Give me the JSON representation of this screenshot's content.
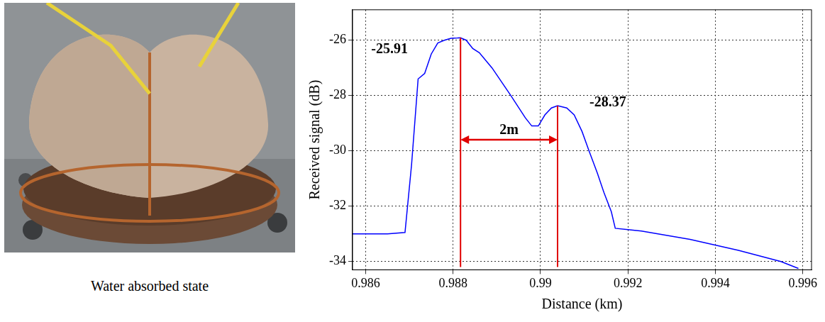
{
  "chart_data": {
    "type": "line",
    "x_label": "Distance (km)",
    "y_label": "Received signal (dB)",
    "xlim": [
      0.9857,
      0.9962
    ],
    "ylim": [
      -34.3,
      -24.9
    ],
    "xticks": [
      0.986,
      0.988,
      0.99,
      0.992,
      0.994,
      0.996
    ],
    "yticks": [
      -34,
      -32,
      -30,
      -28,
      -26
    ],
    "grid": true,
    "series": [
      {
        "color": "#0000ff",
        "x": [
          0.9857,
          0.9865,
          0.9869,
          0.98705,
          0.9872,
          0.98735,
          0.9875,
          0.98765,
          0.9878,
          0.98795,
          0.9881,
          0.98817,
          0.9883,
          0.98845,
          0.9886,
          0.98889,
          0.98932,
          0.98965,
          0.9898,
          0.98995,
          0.9901,
          0.99025,
          0.99039,
          0.9906,
          0.99077,
          0.99095,
          0.99111,
          0.9913,
          0.99145,
          0.99162,
          0.99171,
          0.992,
          0.99231,
          0.99342,
          0.99453,
          0.9955,
          0.9959
        ],
        "values": [
          -33.0,
          -33.0,
          -32.95,
          -30.5,
          -27.4,
          -27.2,
          -26.5,
          -26.1,
          -26.0,
          -25.93,
          -25.92,
          -25.91,
          -26.0,
          -26.3,
          -26.45,
          -27.0,
          -28.0,
          -28.8,
          -29.1,
          -29.1,
          -28.7,
          -28.45,
          -28.37,
          -28.45,
          -28.7,
          -29.3,
          -30.0,
          -30.8,
          -31.5,
          -32.2,
          -32.8,
          -32.85,
          -32.9,
          -33.2,
          -33.6,
          -34.0,
          -34.25
        ]
      }
    ],
    "annotations": [
      {
        "label": "-25.91",
        "x": 0.98817,
        "y": -25.91
      },
      {
        "label": "-28.37",
        "x": 0.99039,
        "y": -28.37
      }
    ],
    "span": {
      "label": "2m",
      "from": 0.98817,
      "to": 0.99039
    }
  },
  "photo": {
    "caption": "Water absorbed state"
  }
}
